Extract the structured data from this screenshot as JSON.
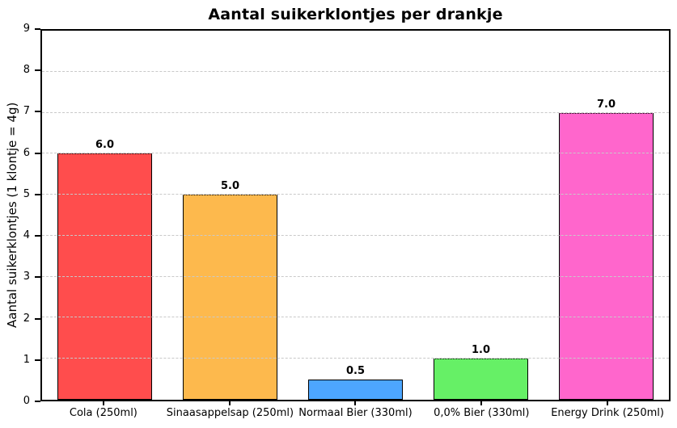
{
  "chart_data": {
    "type": "bar",
    "title": "Aantal suikerklontjes per drankje",
    "xlabel": "",
    "ylabel": "Aantal suikerklontjes (1 klontje = 4g)",
    "categories": [
      "Cola (250ml)",
      "Sinaasappelsap (250ml)",
      "Normaal Bier (330ml)",
      "0,0% Bier (330ml)",
      "Energy Drink (250ml)"
    ],
    "values": [
      6.0,
      5.0,
      0.5,
      1.0,
      7.0
    ],
    "bar_value_labels": [
      "6.0",
      "5.0",
      "0.5",
      "1.0",
      "7.0"
    ],
    "bar_colors": [
      "#ff4d4d",
      "#fdb94d",
      "#4da6ff",
      "#66f066",
      "#ff66cc"
    ],
    "bar_edge_color": "#000000",
    "ylim": [
      0,
      9
    ],
    "yticks": [
      0,
      1,
      2,
      3,
      4,
      5,
      6,
      7,
      8,
      9
    ],
    "ytick_labels": [
      "0",
      "1",
      "2",
      "3",
      "4",
      "5",
      "6",
      "7",
      "8",
      "9"
    ],
    "grid": "horizontal dashed gray, behind bars",
    "gridline_color": "#c9c9c9",
    "legend": "none",
    "background_color": "#ffffff"
  }
}
